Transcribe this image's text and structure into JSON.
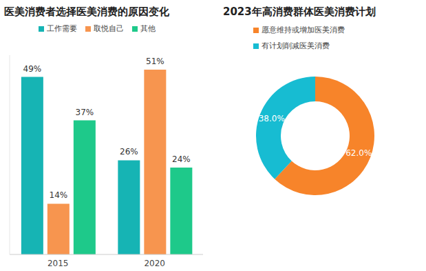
{
  "chart_data": [
    {
      "type": "bar",
      "title": "医美消费者选择医美消费的原因变化",
      "categories": [
        "2015",
        "2020"
      ],
      "series": [
        {
          "name": "工作需要",
          "color": "#16b4b4",
          "values": [
            49,
            26
          ],
          "value_labels": [
            "49%",
            "26%"
          ]
        },
        {
          "name": "取悦自己",
          "color": "#f7954f",
          "values": [
            14,
            51
          ],
          "value_labels": [
            "14%",
            "51%"
          ]
        },
        {
          "name": "其他",
          "color": "#1ec98a",
          "values": [
            37,
            24
          ],
          "value_labels": [
            "37%",
            "24%"
          ]
        }
      ],
      "ylim": [
        0,
        55
      ],
      "data_labels": true,
      "tick_labels": "x",
      "legend": "top"
    },
    {
      "type": "pie",
      "title": "2023年高消费群体医美消费计划",
      "categories": [
        "愿意维持或增加医美消费",
        "有计划削减医美消费"
      ],
      "values": [
        62,
        38
      ],
      "value_labels": [
        "62.0%",
        "38.0%"
      ],
      "colors": [
        "#f7842a",
        "#17bcd2"
      ],
      "data_labels": true,
      "legend": "top"
    }
  ]
}
